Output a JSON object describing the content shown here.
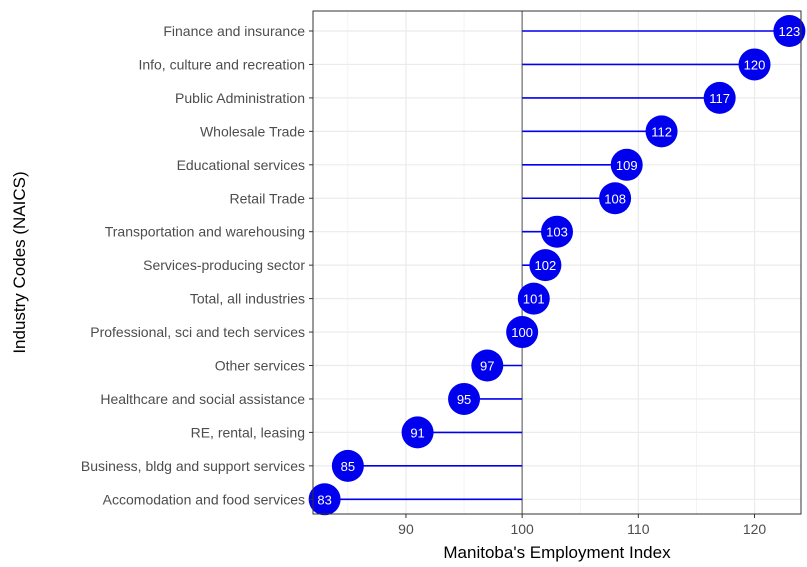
{
  "chart_data": {
    "type": "lollipop",
    "xlabel": "Manitoba's Employment Index",
    "ylabel": "Industry Codes (NAICS)",
    "reference_value": 100,
    "xlim": [
      82,
      124
    ],
    "xticks": [
      90,
      100,
      110,
      120
    ],
    "grid": true,
    "categories": [
      "Finance and insurance",
      "Info, culture and recreation",
      "Public Administration",
      "Wholesale Trade",
      "Educational services",
      "Retail Trade",
      "Transportation and warehousing",
      "Services-producing sector",
      "Total, all industries",
      "Professional, sci and tech services",
      "Other services",
      "Healthcare and social assistance",
      "RE, rental, leasing",
      "Business, bldg and support services",
      "Accomodation and food services"
    ],
    "values": [
      123,
      120,
      117,
      112,
      109,
      108,
      103,
      102,
      101,
      100,
      97,
      95,
      91,
      85,
      83
    ],
    "colors": {
      "point": "#0000ee",
      "stem": "#0000ee",
      "reference_line": "#7f7f7f",
      "grid": "#ebebeb",
      "panel_border": "#333333"
    }
  }
}
